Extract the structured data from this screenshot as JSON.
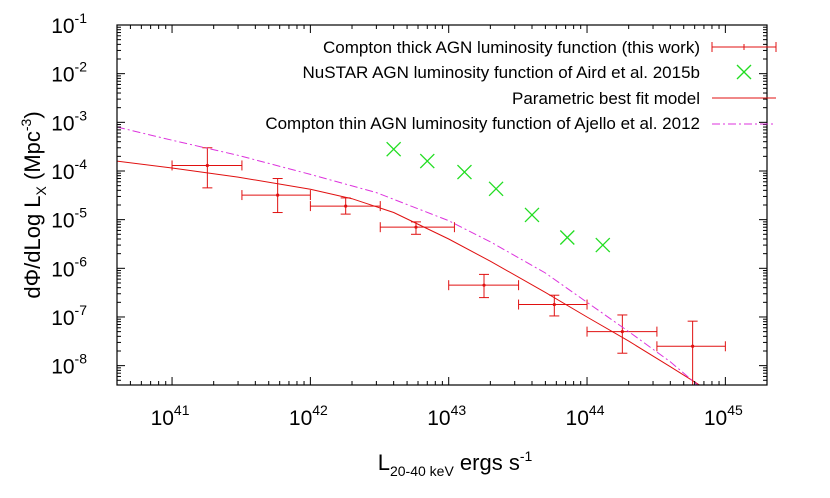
{
  "chart_data": {
    "type": "scatter",
    "title": "",
    "xlabel": {
      "base": "L",
      "sub": "20-40 keV",
      "rest": " ergs s",
      "sup": "-1"
    },
    "ylabel": {
      "pre": "dΦ/dLog L",
      "sub": "X",
      "mid": " (Mpc",
      "sup": "-3",
      "post": ")"
    },
    "x_scale": "log",
    "y_scale": "log",
    "xlim": [
      4e+40,
      2e+45
    ],
    "ylim": [
      4e-09,
      0.1
    ],
    "x_ticks": [
      {
        "value": 1e+41,
        "base": "10",
        "exp": "41"
      },
      {
        "value": 1e+42,
        "base": "10",
        "exp": "42"
      },
      {
        "value": 1e+43,
        "base": "10",
        "exp": "43"
      },
      {
        "value": 1e+44,
        "base": "10",
        "exp": "44"
      },
      {
        "value": 1e+45,
        "base": "10",
        "exp": "45"
      }
    ],
    "y_ticks": [
      {
        "value": 0.1,
        "base": "10",
        "exp": "-1"
      },
      {
        "value": 0.01,
        "base": "10",
        "exp": "-2"
      },
      {
        "value": 0.001,
        "base": "10",
        "exp": "-3"
      },
      {
        "value": 0.0001,
        "base": "10",
        "exp": "-4"
      },
      {
        "value": 1e-05,
        "base": "10",
        "exp": "-5"
      },
      {
        "value": 1e-06,
        "base": "10",
        "exp": "-6"
      },
      {
        "value": 1e-07,
        "base": "10",
        "exp": "-7"
      },
      {
        "value": 1e-08,
        "base": "10",
        "exp": "-8"
      }
    ],
    "legend_position": "top-right",
    "series": [
      {
        "name": "Compton thick AGN luminosity function (this work)",
        "kind": "errorbar",
        "color": "#e01010",
        "points": [
          {
            "x": 1.8e+41,
            "xlo": 1e+41,
            "xhi": 3.2e+41,
            "y": 0.00013,
            "ylo": 4.5e-05,
            "yhi": 0.0003
          },
          {
            "x": 5.8e+41,
            "xlo": 3.2e+41,
            "xhi": 1e+42,
            "y": 3.2e-05,
            "ylo": 1.4e-05,
            "yhi": 7e-05
          },
          {
            "x": 1.8e+42,
            "xlo": 1e+42,
            "xhi": 3.2e+42,
            "y": 1.9e-05,
            "ylo": 1.3e-05,
            "yhi": 2.8e-05
          },
          {
            "x": 5.8e+42,
            "xlo": 3.2e+42,
            "xhi": 1.1e+43,
            "y": 7e-06,
            "ylo": 5e-06,
            "yhi": 9e-06
          },
          {
            "x": 1.8e+43,
            "xlo": 1e+43,
            "xhi": 3.2e+43,
            "y": 4.5e-07,
            "ylo": 2.5e-07,
            "yhi": 7.5e-07
          },
          {
            "x": 5.8e+43,
            "xlo": 3.2e+43,
            "xhi": 1e+44,
            "y": 1.8e-07,
            "ylo": 1.05e-07,
            "yhi": 2.8e-07
          },
          {
            "x": 1.8e+44,
            "xlo": 1e+44,
            "xhi": 3.2e+44,
            "y": 5e-08,
            "ylo": 1.8e-08,
            "yhi": 1.1e-07
          },
          {
            "x": 5.8e+44,
            "xlo": 3.2e+44,
            "xhi": 1e+45,
            "y": 2.5e-08,
            "ylo": 4e-09,
            "yhi": 8.2e-08
          }
        ]
      },
      {
        "name": "NuSTAR AGN luminosity function of Aird et al. 2015b",
        "kind": "marker-x",
        "color": "#22dd22",
        "points": [
          {
            "x": 4e+42,
            "y": 0.00028
          },
          {
            "x": 7e+42,
            "y": 0.00016
          },
          {
            "x": 1.3e+43,
            "y": 9.5e-05
          },
          {
            "x": 2.2e+43,
            "y": 4.3e-05
          },
          {
            "x": 4e+43,
            "y": 1.25e-05
          },
          {
            "x": 7.2e+43,
            "y": 4.3e-06
          },
          {
            "x": 1.3e+44,
            "y": 3e-06
          }
        ]
      },
      {
        "name": "Parametric best fit model",
        "kind": "line",
        "color": "#e01010",
        "dash": "",
        "points": [
          {
            "x": 4e+40,
            "y": 0.00016
          },
          {
            "x": 1e+41,
            "y": 0.000115
          },
          {
            "x": 3e+41,
            "y": 7.5e-05
          },
          {
            "x": 1e+42,
            "y": 4.2e-05
          },
          {
            "x": 2e+42,
            "y": 2.7e-05
          },
          {
            "x": 4e+42,
            "y": 1.4e-05
          },
          {
            "x": 1e+43,
            "y": 4e-06
          },
          {
            "x": 2e+43,
            "y": 1.4e-06
          },
          {
            "x": 5e+43,
            "y": 3.2e-07
          },
          {
            "x": 1e+44,
            "y": 1e-07
          },
          {
            "x": 2e+44,
            "y": 3.2e-08
          },
          {
            "x": 4e+44,
            "y": 9.5e-09
          },
          {
            "x": 6.5e+44,
            "y": 4e-09
          }
        ]
      },
      {
        "name": "Compton thin AGN luminosity function of Ajello et al. 2012",
        "kind": "line",
        "color": "#dd33dd",
        "dash": "8 3 2 3",
        "points": [
          {
            "x": 4e+40,
            "y": 0.0008
          },
          {
            "x": 1e+41,
            "y": 0.00043
          },
          {
            "x": 3e+41,
            "y": 0.00021
          },
          {
            "x": 1e+42,
            "y": 8.5e-05
          },
          {
            "x": 3e+42,
            "y": 3.6e-05
          },
          {
            "x": 1e+43,
            "y": 9.5e-06
          },
          {
            "x": 2e+43,
            "y": 3.5e-06
          },
          {
            "x": 5e+43,
            "y": 8e-07
          },
          {
            "x": 1e+44,
            "y": 2e-07
          },
          {
            "x": 2e+44,
            "y": 5e-08
          },
          {
            "x": 4e+44,
            "y": 1.2e-08
          },
          {
            "x": 6.3e+44,
            "y": 4e-09
          }
        ]
      }
    ]
  }
}
